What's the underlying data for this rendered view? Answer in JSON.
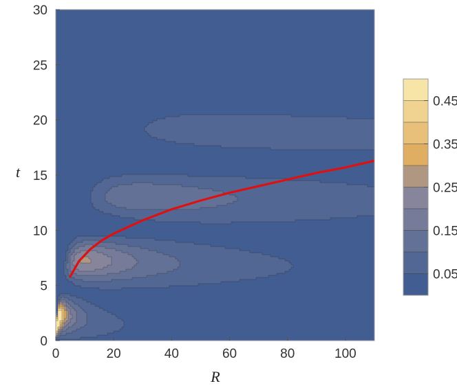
{
  "chart_data": {
    "type": "contour",
    "xlabel": "R",
    "ylabel": "t",
    "xlim": [
      0,
      110
    ],
    "ylim": [
      0,
      30
    ],
    "x_ticks": [
      "0",
      "20",
      "40",
      "60",
      "80",
      "100"
    ],
    "y_ticks": [
      "0",
      "5",
      "10",
      "15",
      "20",
      "25",
      "30"
    ],
    "colorbar": {
      "range": [
        0,
        0.5
      ],
      "levels": [
        0.05,
        0.1,
        0.15,
        0.2,
        0.25,
        0.3,
        0.35,
        0.4,
        0.45,
        0.5
      ],
      "tick_labels": [
        "0.05",
        "0.15",
        "0.25",
        "0.35",
        "0.45"
      ],
      "tick_values": [
        0.05,
        0.15,
        0.25,
        0.35,
        0.45
      ]
    },
    "curve": {
      "color": "#dd1111",
      "points": [
        [
          5,
          5.8
        ],
        [
          8,
          7.2
        ],
        [
          12,
          8.3
        ],
        [
          16,
          9.1
        ],
        [
          20,
          9.7
        ],
        [
          25,
          10.3
        ],
        [
          30,
          10.9
        ],
        [
          40,
          11.9
        ],
        [
          50,
          12.7
        ],
        [
          60,
          13.4
        ],
        [
          70,
          14.0
        ],
        [
          80,
          14.6
        ],
        [
          90,
          15.2
        ],
        [
          100,
          15.7
        ],
        [
          110,
          16.3
        ]
      ]
    },
    "palette": {
      "low": "#3a5890",
      "mid": "#8e8a9c",
      "high": "#fbeeb3",
      "border": "#2c2c2c"
    }
  }
}
